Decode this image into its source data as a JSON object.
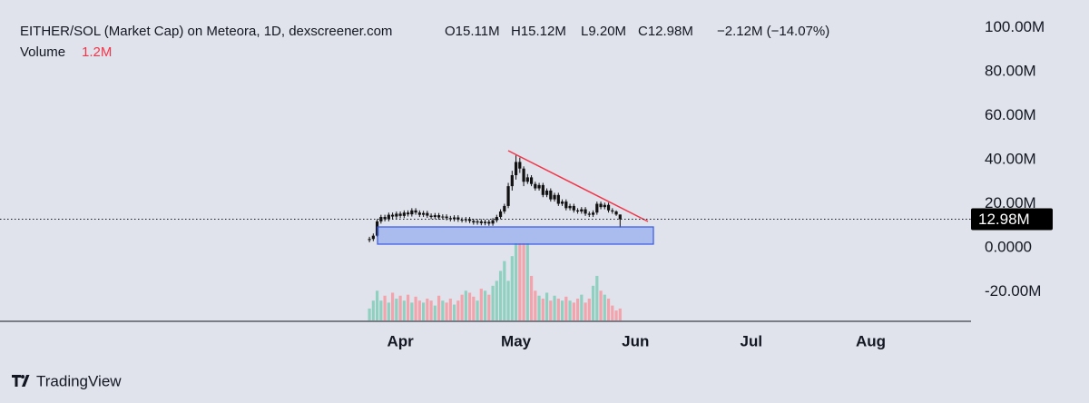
{
  "chart_data": {
    "type": "candlestick",
    "title": "EITHER/SOL (Market Cap) on Meteora, 1D, dexscreener.com",
    "ohlc_labels": [
      "O15.11M",
      "H15.12M",
      "L9.20M",
      "C12.98M"
    ],
    "change_label": "−2.12M (−14.07%)",
    "volume_title": "Volume",
    "volume_label": "1.2M",
    "last_price_label": "12.98M",
    "x": [
      -8,
      -7,
      -6,
      -5,
      -4,
      -3,
      -2,
      -1,
      0,
      1,
      2,
      3,
      4,
      5,
      6,
      7,
      8,
      9,
      10,
      11,
      12,
      13,
      14,
      15,
      16,
      17,
      18,
      19,
      20,
      21,
      22,
      23,
      24,
      25,
      26,
      27,
      28,
      29,
      30,
      31,
      32,
      33,
      34,
      35,
      36,
      37,
      38,
      39,
      40,
      41,
      42,
      43,
      44,
      45,
      46,
      47,
      48,
      49,
      50,
      51,
      52,
      53,
      54,
      55,
      56,
      57
    ],
    "open": [
      3.5,
      4.0,
      5.5,
      12.0,
      14.0,
      13.0,
      15.0,
      14.2,
      15.5,
      14.5,
      16.0,
      15.2,
      17.0,
      16.0,
      15.0,
      15.8,
      14.6,
      14.0,
      14.8,
      13.8,
      14.2,
      13.5,
      13.0,
      13.8,
      12.8,
      12.5,
      13.0,
      12.2,
      11.5,
      12.0,
      11.2,
      11.8,
      11.0,
      12.5,
      14.0,
      16.5,
      19.0,
      28.0,
      33.0,
      39.0,
      36.0,
      30.0,
      32.0,
      29.0,
      27.0,
      28.5,
      24.0,
      26.0,
      22.0,
      24.0,
      20.0,
      21.0,
      18.0,
      19.0,
      17.0,
      16.5,
      17.5,
      15.5,
      15.0,
      16.0,
      20.0,
      18.5,
      19.5,
      17.0,
      16.5,
      15.11
    ],
    "high": [
      5,
      6.5,
      13,
      15,
      15,
      16,
      16,
      16.5,
      16.5,
      17,
      17,
      18,
      18,
      17,
      16.8,
      16.8,
      15.6,
      15.8,
      15.8,
      15.2,
      15.2,
      14.5,
      14.8,
      14.8,
      13.8,
      14,
      14,
      13.2,
      13,
      13,
      12.8,
      12.8,
      13.5,
      15,
      17.5,
      20,
      29.5,
      35,
      42,
      41,
      37,
      33.5,
      33,
      30,
      29.5,
      29.5,
      27,
      27,
      25,
      25,
      22,
      22,
      20,
      20,
      18,
      18.5,
      18.5,
      16.5,
      17,
      21,
      21,
      20.5,
      20.5,
      18,
      17,
      15.12
    ],
    "low": [
      2.5,
      3,
      5,
      11,
      12,
      12,
      13.2,
      13.2,
      13.5,
      13.5,
      14.2,
      14.2,
      15,
      14,
      14,
      13.6,
      13,
      13,
      12.8,
      12.8,
      12.5,
      12,
      12,
      11.8,
      11.5,
      11.5,
      11.2,
      10.5,
      10.5,
      10.2,
      10.2,
      10,
      10,
      11.5,
      13,
      15.5,
      18,
      26,
      31,
      34,
      28,
      29,
      28,
      26,
      26,
      23,
      23,
      21,
      21,
      19,
      19,
      17,
      17,
      16,
      15.5,
      15.5,
      14.5,
      14,
      14,
      15,
      17.5,
      17.5,
      16,
      15.5,
      14.5,
      9.2
    ],
    "close": [
      4.0,
      5.5,
      12.0,
      14.0,
      13.0,
      15.0,
      14.2,
      15.5,
      14.5,
      16.0,
      15.2,
      17.0,
      16.0,
      15.0,
      15.8,
      14.6,
      14.0,
      14.8,
      13.8,
      14.2,
      13.5,
      13.0,
      13.8,
      12.8,
      12.5,
      13.0,
      12.2,
      11.5,
      12.0,
      11.2,
      11.8,
      11.0,
      12.5,
      14.0,
      16.5,
      19.0,
      28.0,
      33.0,
      39.0,
      36.0,
      30.0,
      32.0,
      29.0,
      27.0,
      28.5,
      24.0,
      26.0,
      22.0,
      24.0,
      20.0,
      21.0,
      18.0,
      19.0,
      17.0,
      16.5,
      17.5,
      15.5,
      15.0,
      16.0,
      20.0,
      18.5,
      19.5,
      17.0,
      16.5,
      15.11,
      12.98
    ],
    "volume": [
      1.2,
      2.0,
      3.0,
      2.0,
      2.5,
      1.8,
      2.8,
      2.2,
      2.5,
      2.0,
      2.6,
      1.8,
      2.4,
      2.0,
      1.8,
      2.2,
      2.0,
      1.5,
      2.5,
      2.0,
      1.8,
      2.2,
      1.6,
      2.0,
      2.6,
      3.0,
      2.8,
      2.4,
      2.0,
      3.2,
      3.0,
      2.6,
      3.5,
      4.0,
      5.0,
      6.0,
      4.0,
      6.5,
      7.8,
      7.8,
      7.8,
      7.8,
      4.5,
      3.0,
      2.5,
      2.2,
      2.8,
      2.0,
      2.5,
      2.2,
      2.0,
      2.4,
      2.0,
      1.8,
      2.2,
      2.6,
      1.8,
      2.2,
      3.5,
      4.5,
      3.0,
      2.6,
      2.2,
      1.5,
      1.0,
      1.2
    ],
    "candle_color": "#111111",
    "up_volume_color": "#8fd0c1",
    "down_volume_color": "#f2a3ab",
    "xlim": [
      -103.8,
      148
    ],
    "xticks": [
      {
        "value": 0,
        "label": "Apr"
      },
      {
        "value": 30,
        "label": "May"
      },
      {
        "value": 61,
        "label": "Jun"
      },
      {
        "value": 91,
        "label": "Jul"
      },
      {
        "value": 122,
        "label": "Aug"
      }
    ],
    "ylim": [
      -33,
      112.6
    ],
    "yticks": [
      {
        "value": 100,
        "label": "100.00M"
      },
      {
        "value": 80,
        "label": "80.00M"
      },
      {
        "value": 60,
        "label": "60.00M"
      },
      {
        "value": 40,
        "label": "40.00M"
      },
      {
        "value": 20,
        "label": "20.00M"
      },
      {
        "value": 0,
        "label": "0.0000"
      },
      {
        "value": -20,
        "label": "-20.00M"
      }
    ]
  },
  "footer": {
    "brand": "TradingView"
  }
}
